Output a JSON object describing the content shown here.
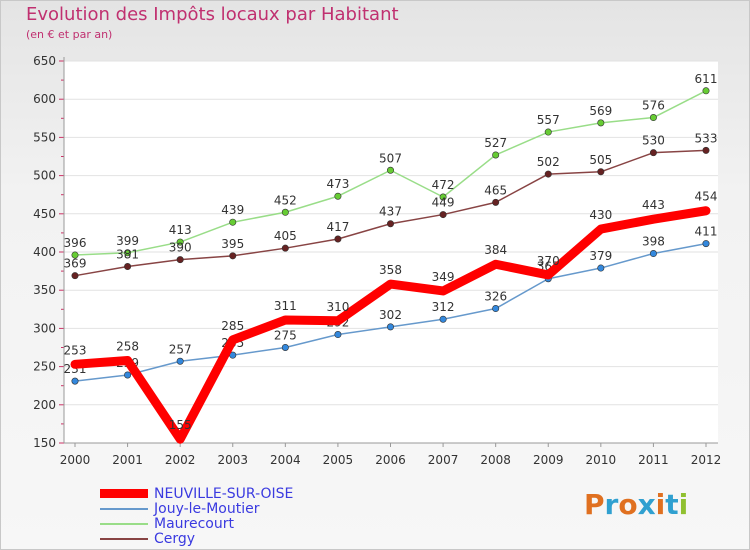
{
  "title": "Evolution des Impôts locaux par Habitant",
  "subtitle": "(en € et par an)",
  "logo": {
    "text": "Proxiti",
    "colors": [
      "#e07020",
      "#30a0d0",
      "#e07020",
      "#30a0d0",
      "#e07020",
      "#30a0d0",
      "#90c030"
    ]
  },
  "chart_data": {
    "type": "line",
    "title": "Evolution des Impôts locaux par Habitant",
    "subtitle": "(en € et par an)",
    "x": [
      "2000",
      "2001",
      "2002",
      "2003",
      "2004",
      "2005",
      "2006",
      "2007",
      "2008",
      "2009",
      "2010",
      "2011",
      "2012"
    ],
    "ylim": [
      150,
      650
    ],
    "yticks": [
      150,
      200,
      250,
      300,
      350,
      400,
      450,
      500,
      550,
      600,
      650
    ],
    "grid": "horizontal",
    "legend_position": "bottom-left",
    "series": [
      {
        "name": "NEUVILLE-SUR-OISE",
        "color": "#ff0000",
        "emphasis": true,
        "values": [
          253,
          258,
          155,
          285,
          311,
          310,
          358,
          349,
          384,
          370,
          430,
          443,
          454
        ]
      },
      {
        "name": "Jouy-le-Moutier",
        "color": "#6699cc",
        "marker": "#3388dd",
        "values": [
          231,
          239,
          257,
          265,
          275,
          292,
          302,
          312,
          326,
          365,
          379,
          398,
          411
        ]
      },
      {
        "name": "Maurecourt",
        "color": "#99dd88",
        "marker": "#66cc33",
        "values": [
          396,
          399,
          413,
          439,
          452,
          473,
          507,
          472,
          527,
          557,
          569,
          576,
          611
        ]
      },
      {
        "name": "Cergy",
        "color": "#884444",
        "marker": "#662222",
        "values": [
          369,
          381,
          390,
          395,
          405,
          417,
          437,
          449,
          465,
          502,
          505,
          530,
          533
        ]
      }
    ]
  }
}
